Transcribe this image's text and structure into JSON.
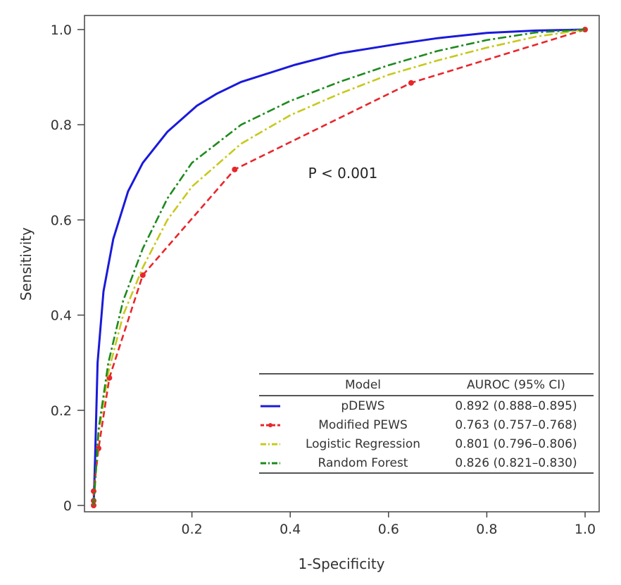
{
  "chart_data": {
    "type": "line",
    "title": "",
    "xlabel": "1-Specificity",
    "ylabel": "Sensitivity",
    "xlim": [
      0,
      1
    ],
    "ylim": [
      0,
      1
    ],
    "x_ticks": [
      "0.2",
      "0.4",
      "0.6",
      "0.8",
      "1.0"
    ],
    "y_ticks": [
      "0",
      "0.2",
      "0.4",
      "0.6",
      "0.8",
      "1.0"
    ],
    "grid": false,
    "annotation": "P < 0.001",
    "legend": {
      "placement": "bottom-right",
      "header_model": "Model",
      "header_auroc": "AUROC (95% CI)"
    },
    "series": [
      {
        "name": "pDEWS",
        "auroc": "0.892 (0.888–0.895)",
        "color": "#1a1adb",
        "style": "solid",
        "points": [
          [
            0,
            0
          ],
          [
            0.003,
            0.1
          ],
          [
            0.008,
            0.3
          ],
          [
            0.02,
            0.45
          ],
          [
            0.04,
            0.56
          ],
          [
            0.07,
            0.66
          ],
          [
            0.1,
            0.72
          ],
          [
            0.15,
            0.785
          ],
          [
            0.21,
            0.84
          ],
          [
            0.25,
            0.865
          ],
          [
            0.3,
            0.89
          ],
          [
            0.41,
            0.926
          ],
          [
            0.5,
            0.95
          ],
          [
            0.62,
            0.97
          ],
          [
            0.7,
            0.982
          ],
          [
            0.8,
            0.993
          ],
          [
            0.9,
            0.998
          ],
          [
            1,
            1
          ]
        ]
      },
      {
        "name": "Modified PEWS",
        "auroc": "0.763 (0.757–0.768)",
        "color": "#e8262b",
        "style": "dashed-marker",
        "points": [
          [
            0,
            0
          ],
          [
            0,
            0.01
          ],
          [
            0,
            0.03
          ],
          [
            0.01,
            0.12
          ],
          [
            0.032,
            0.268
          ],
          [
            0.1,
            0.484
          ],
          [
            0.287,
            0.706
          ],
          [
            0.646,
            0.888
          ],
          [
            1,
            1
          ]
        ]
      },
      {
        "name": "Logistic Regression",
        "auroc": "0.801 (0.796–0.806)",
        "color": "#c8c81e",
        "style": "dashdot",
        "points": [
          [
            0,
            0
          ],
          [
            0.01,
            0.15
          ],
          [
            0.03,
            0.28
          ],
          [
            0.06,
            0.4
          ],
          [
            0.1,
            0.5
          ],
          [
            0.15,
            0.6
          ],
          [
            0.2,
            0.67
          ],
          [
            0.3,
            0.76
          ],
          [
            0.4,
            0.82
          ],
          [
            0.5,
            0.865
          ],
          [
            0.6,
            0.905
          ],
          [
            0.7,
            0.935
          ],
          [
            0.8,
            0.962
          ],
          [
            0.9,
            0.985
          ],
          [
            1,
            1
          ]
        ]
      },
      {
        "name": "Random Forest",
        "auroc": "0.826 (0.821–0.830)",
        "color": "#1e8a1e",
        "style": "dashdot",
        "points": [
          [
            0,
            0
          ],
          [
            0.01,
            0.16
          ],
          [
            0.03,
            0.3
          ],
          [
            0.06,
            0.43
          ],
          [
            0.1,
            0.54
          ],
          [
            0.15,
            0.645
          ],
          [
            0.2,
            0.72
          ],
          [
            0.3,
            0.8
          ],
          [
            0.4,
            0.85
          ],
          [
            0.5,
            0.89
          ],
          [
            0.6,
            0.925
          ],
          [
            0.7,
            0.955
          ],
          [
            0.8,
            0.978
          ],
          [
            0.9,
            0.994
          ],
          [
            1,
            1
          ]
        ]
      }
    ]
  }
}
